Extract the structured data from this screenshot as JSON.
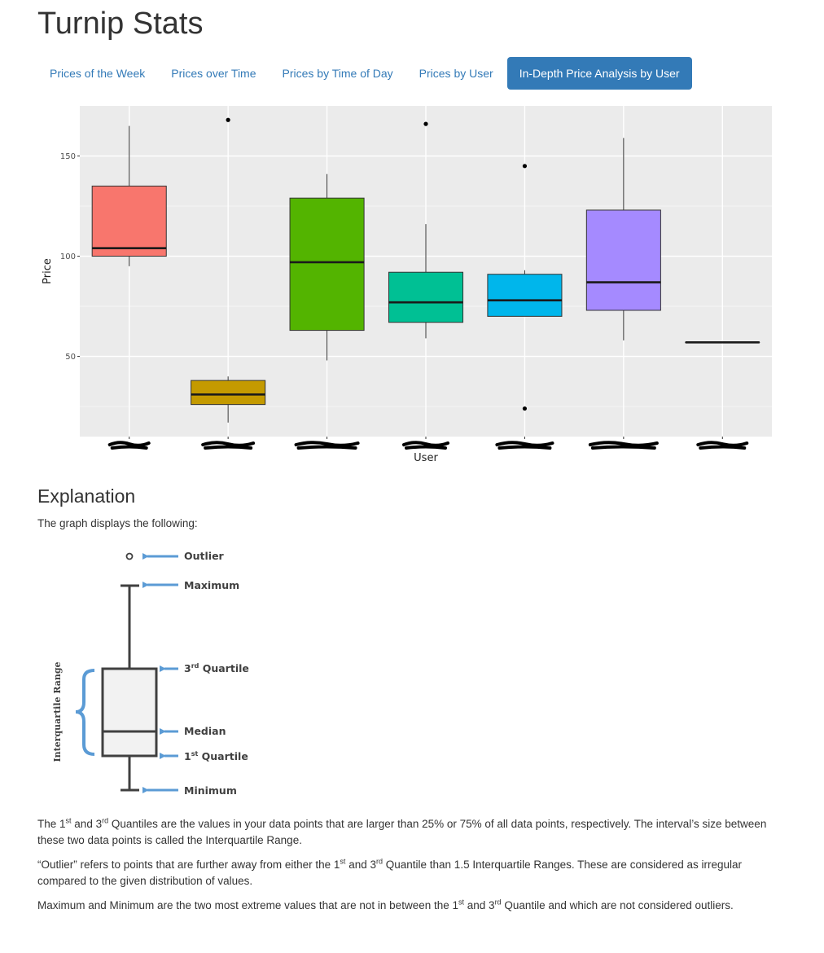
{
  "app": {
    "title": "Turnip Stats"
  },
  "tabs": [
    {
      "label": "Prices of the Week",
      "active": false
    },
    {
      "label": "Prices over Time",
      "active": false
    },
    {
      "label": "Prices by Time of Day",
      "active": false
    },
    {
      "label": "Prices by User",
      "active": false
    },
    {
      "label": "In-Depth Price Analysis by User",
      "active": true
    }
  ],
  "chart_data": {
    "type": "boxplot",
    "xlabel": "User",
    "ylabel": "Price",
    "ylim": [
      10,
      175
    ],
    "yticks": [
      50,
      100,
      150
    ],
    "grid": true,
    "x_tick_labels_redacted": true,
    "series": [
      {
        "color": "#F8766D",
        "min": 95,
        "q1": 100,
        "median": 104,
        "q3": 135,
        "max": 165,
        "outliers": []
      },
      {
        "color": "#C49A00",
        "min": 17,
        "q1": 26,
        "median": 31,
        "q3": 38,
        "max": 40,
        "outliers": [
          168
        ]
      },
      {
        "color": "#53B400",
        "min": 48,
        "q1": 63,
        "median": 97,
        "q3": 129,
        "max": 141,
        "outliers": []
      },
      {
        "color": "#00C094",
        "min": 59,
        "q1": 67,
        "median": 77,
        "q3": 92,
        "max": 116,
        "outliers": [
          166
        ]
      },
      {
        "color": "#00B6EB",
        "min": 70,
        "q1": 70,
        "median": 78,
        "q3": 91,
        "max": 93,
        "outliers": [
          145,
          24
        ]
      },
      {
        "color": "#A58AFF",
        "min": 58,
        "q1": 73,
        "median": 87,
        "q3": 123,
        "max": 159,
        "outliers": []
      },
      {
        "color": "#FB61D7",
        "min": 57,
        "q1": 57,
        "median": 57,
        "q3": 57,
        "max": 57,
        "outliers": []
      }
    ]
  },
  "explanation": {
    "title": "Explanation",
    "intro": "The graph displays the following:",
    "diagram": {
      "outlier": "Outlier",
      "maximum": "Maximum",
      "q3_prefix": "3",
      "q3_sup": "rd",
      "q3_suffix": " Quartile",
      "median": "Median",
      "q1_prefix": "1",
      "q1_sup": "st",
      "q1_suffix": " Quartile",
      "minimum": "Minimum",
      "iqr": "Interquartile Range"
    },
    "p1": {
      "a": "The 1",
      "sup1": "st",
      "b": " and 3",
      "sup2": "rd",
      "c": " Quantiles are the values in your data points that are larger than 25% or 75% of all data points, respectively. The interval’s size between these two data points is called the Interquartile Range."
    },
    "p2": {
      "a": "“Outlier” refers to points that are further away from either the 1",
      "sup1": "st",
      "b": " and 3",
      "sup2": "rd",
      "c": " Quantile than 1.5 Interquartile Ranges. These are considered as irregular compared to the given distribution of values."
    },
    "p3": {
      "a": "Maximum and Minimum are the two most extreme values that are not in between the 1",
      "sup1": "st",
      "b": " and 3",
      "sup2": "rd",
      "c": " Quantile and which are not considered outliers."
    }
  }
}
